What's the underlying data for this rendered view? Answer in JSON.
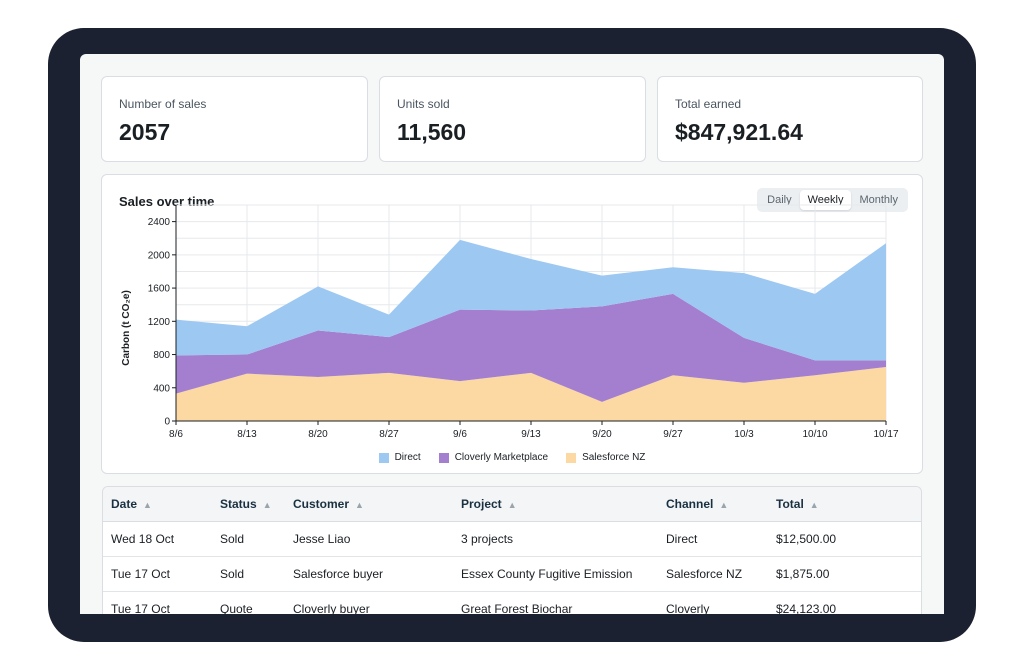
{
  "stats": [
    {
      "label": "Number of sales",
      "value": "2057"
    },
    {
      "label": "Units sold",
      "value": "11,560"
    },
    {
      "label": "Total earned",
      "value": "$847,921.64"
    }
  ],
  "chart": {
    "title": "Sales over time",
    "periods": [
      "Daily",
      "Weekly",
      "Monthly"
    ],
    "active_period": "Weekly"
  },
  "chart_data": {
    "type": "area",
    "x": [
      "8/6",
      "8/13",
      "8/20",
      "8/27",
      "9/6",
      "9/13",
      "9/20",
      "9/27",
      "10/3",
      "10/10",
      "10/17"
    ],
    "series": [
      {
        "name": "Salesforce NZ",
        "values": [
          330,
          570,
          530,
          580,
          480,
          580,
          230,
          550,
          460,
          550,
          650
        ]
      },
      {
        "name": "Cloverly Marketplace",
        "values": [
          460,
          230,
          560,
          430,
          860,
          750,
          1150,
          980,
          540,
          180,
          80
        ]
      },
      {
        "name": "Direct",
        "values": [
          430,
          340,
          530,
          270,
          840,
          620,
          370,
          320,
          780,
          800,
          1410
        ]
      }
    ],
    "stacked": true,
    "ylabel": "Carbon (t CO₂e)",
    "yticks": [
      0,
      400,
      800,
      1200,
      1600,
      2000,
      2400
    ],
    "ylim": [
      0,
      2600
    ],
    "colors": {
      "Direct": "#9cc8f2",
      "Cloverly Marketplace": "#a47fcf",
      "Salesforce NZ": "#fcd9a2"
    },
    "legend_order": [
      "Direct",
      "Cloverly Marketplace",
      "Salesforce NZ"
    ],
    "grid": true,
    "legend_position": "bottom"
  },
  "table": {
    "columns": [
      "Date",
      "Status",
      "Customer",
      "Project",
      "Channel",
      "Total"
    ],
    "rows": [
      [
        "Wed 18 Oct",
        "Sold",
        "Jesse Liao",
        "3 projects",
        "Direct",
        "$12,500.00"
      ],
      [
        "Tue 17 Oct",
        "Sold",
        "Salesforce buyer",
        "Essex County Fugitive Emission",
        "Salesforce NZ",
        "$1,875.00"
      ],
      [
        "Tue 17 Oct",
        "Quote",
        "Cloverly buyer",
        "Great Forest Biochar",
        "Cloverly",
        "$24,123.00"
      ]
    ]
  }
}
